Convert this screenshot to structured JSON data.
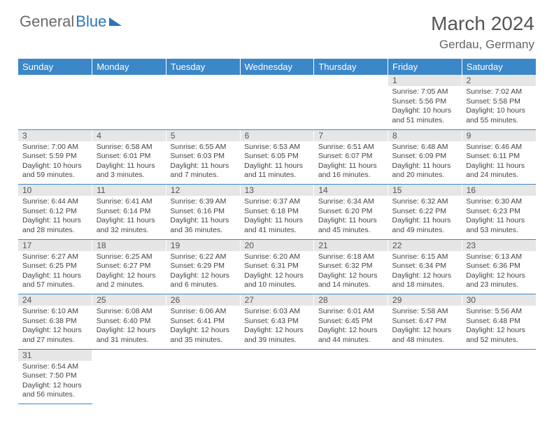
{
  "logo": {
    "part1": "General",
    "part2": "Blue"
  },
  "title": "March 2024",
  "location": "Gerdau, Germany",
  "colors": {
    "header_bg": "#3b87c8",
    "header_text": "#ffffff",
    "daynum_bg": "#e6e6e6",
    "cell_border": "#3b87c8",
    "body_text": "#444444",
    "title_text": "#555555"
  },
  "weekdays": [
    "Sunday",
    "Monday",
    "Tuesday",
    "Wednesday",
    "Thursday",
    "Friday",
    "Saturday"
  ],
  "weeks": [
    {
      "nums": [
        "",
        "",
        "",
        "",
        "",
        "1",
        "2"
      ],
      "cells": [
        null,
        null,
        null,
        null,
        null,
        {
          "sunrise": "Sunrise: 7:05 AM",
          "sunset": "Sunset: 5:56 PM",
          "day1": "Daylight: 10 hours",
          "day2": "and 51 minutes."
        },
        {
          "sunrise": "Sunrise: 7:02 AM",
          "sunset": "Sunset: 5:58 PM",
          "day1": "Daylight: 10 hours",
          "day2": "and 55 minutes."
        }
      ]
    },
    {
      "nums": [
        "3",
        "4",
        "5",
        "6",
        "7",
        "8",
        "9"
      ],
      "cells": [
        {
          "sunrise": "Sunrise: 7:00 AM",
          "sunset": "Sunset: 5:59 PM",
          "day1": "Daylight: 10 hours",
          "day2": "and 59 minutes."
        },
        {
          "sunrise": "Sunrise: 6:58 AM",
          "sunset": "Sunset: 6:01 PM",
          "day1": "Daylight: 11 hours",
          "day2": "and 3 minutes."
        },
        {
          "sunrise": "Sunrise: 6:55 AM",
          "sunset": "Sunset: 6:03 PM",
          "day1": "Daylight: 11 hours",
          "day2": "and 7 minutes."
        },
        {
          "sunrise": "Sunrise: 6:53 AM",
          "sunset": "Sunset: 6:05 PM",
          "day1": "Daylight: 11 hours",
          "day2": "and 11 minutes."
        },
        {
          "sunrise": "Sunrise: 6:51 AM",
          "sunset": "Sunset: 6:07 PM",
          "day1": "Daylight: 11 hours",
          "day2": "and 16 minutes."
        },
        {
          "sunrise": "Sunrise: 6:48 AM",
          "sunset": "Sunset: 6:09 PM",
          "day1": "Daylight: 11 hours",
          "day2": "and 20 minutes."
        },
        {
          "sunrise": "Sunrise: 6:46 AM",
          "sunset": "Sunset: 6:11 PM",
          "day1": "Daylight: 11 hours",
          "day2": "and 24 minutes."
        }
      ]
    },
    {
      "nums": [
        "10",
        "11",
        "12",
        "13",
        "14",
        "15",
        "16"
      ],
      "cells": [
        {
          "sunrise": "Sunrise: 6:44 AM",
          "sunset": "Sunset: 6:12 PM",
          "day1": "Daylight: 11 hours",
          "day2": "and 28 minutes."
        },
        {
          "sunrise": "Sunrise: 6:41 AM",
          "sunset": "Sunset: 6:14 PM",
          "day1": "Daylight: 11 hours",
          "day2": "and 32 minutes."
        },
        {
          "sunrise": "Sunrise: 6:39 AM",
          "sunset": "Sunset: 6:16 PM",
          "day1": "Daylight: 11 hours",
          "day2": "and 36 minutes."
        },
        {
          "sunrise": "Sunrise: 6:37 AM",
          "sunset": "Sunset: 6:18 PM",
          "day1": "Daylight: 11 hours",
          "day2": "and 41 minutes."
        },
        {
          "sunrise": "Sunrise: 6:34 AM",
          "sunset": "Sunset: 6:20 PM",
          "day1": "Daylight: 11 hours",
          "day2": "and 45 minutes."
        },
        {
          "sunrise": "Sunrise: 6:32 AM",
          "sunset": "Sunset: 6:22 PM",
          "day1": "Daylight: 11 hours",
          "day2": "and 49 minutes."
        },
        {
          "sunrise": "Sunrise: 6:30 AM",
          "sunset": "Sunset: 6:23 PM",
          "day1": "Daylight: 11 hours",
          "day2": "and 53 minutes."
        }
      ]
    },
    {
      "nums": [
        "17",
        "18",
        "19",
        "20",
        "21",
        "22",
        "23"
      ],
      "cells": [
        {
          "sunrise": "Sunrise: 6:27 AM",
          "sunset": "Sunset: 6:25 PM",
          "day1": "Daylight: 11 hours",
          "day2": "and 57 minutes."
        },
        {
          "sunrise": "Sunrise: 6:25 AM",
          "sunset": "Sunset: 6:27 PM",
          "day1": "Daylight: 12 hours",
          "day2": "and 2 minutes."
        },
        {
          "sunrise": "Sunrise: 6:22 AM",
          "sunset": "Sunset: 6:29 PM",
          "day1": "Daylight: 12 hours",
          "day2": "and 6 minutes."
        },
        {
          "sunrise": "Sunrise: 6:20 AM",
          "sunset": "Sunset: 6:31 PM",
          "day1": "Daylight: 12 hours",
          "day2": "and 10 minutes."
        },
        {
          "sunrise": "Sunrise: 6:18 AM",
          "sunset": "Sunset: 6:32 PM",
          "day1": "Daylight: 12 hours",
          "day2": "and 14 minutes."
        },
        {
          "sunrise": "Sunrise: 6:15 AM",
          "sunset": "Sunset: 6:34 PM",
          "day1": "Daylight: 12 hours",
          "day2": "and 18 minutes."
        },
        {
          "sunrise": "Sunrise: 6:13 AM",
          "sunset": "Sunset: 6:36 PM",
          "day1": "Daylight: 12 hours",
          "day2": "and 23 minutes."
        }
      ]
    },
    {
      "nums": [
        "24",
        "25",
        "26",
        "27",
        "28",
        "29",
        "30"
      ],
      "cells": [
        {
          "sunrise": "Sunrise: 6:10 AM",
          "sunset": "Sunset: 6:38 PM",
          "day1": "Daylight: 12 hours",
          "day2": "and 27 minutes."
        },
        {
          "sunrise": "Sunrise: 6:08 AM",
          "sunset": "Sunset: 6:40 PM",
          "day1": "Daylight: 12 hours",
          "day2": "and 31 minutes."
        },
        {
          "sunrise": "Sunrise: 6:06 AM",
          "sunset": "Sunset: 6:41 PM",
          "day1": "Daylight: 12 hours",
          "day2": "and 35 minutes."
        },
        {
          "sunrise": "Sunrise: 6:03 AM",
          "sunset": "Sunset: 6:43 PM",
          "day1": "Daylight: 12 hours",
          "day2": "and 39 minutes."
        },
        {
          "sunrise": "Sunrise: 6:01 AM",
          "sunset": "Sunset: 6:45 PM",
          "day1": "Daylight: 12 hours",
          "day2": "and 44 minutes."
        },
        {
          "sunrise": "Sunrise: 5:58 AM",
          "sunset": "Sunset: 6:47 PM",
          "day1": "Daylight: 12 hours",
          "day2": "and 48 minutes."
        },
        {
          "sunrise": "Sunrise: 5:56 AM",
          "sunset": "Sunset: 6:48 PM",
          "day1": "Daylight: 12 hours",
          "day2": "and 52 minutes."
        }
      ]
    },
    {
      "nums": [
        "31",
        "",
        "",
        "",
        "",
        "",
        ""
      ],
      "cells": [
        {
          "sunrise": "Sunrise: 6:54 AM",
          "sunset": "Sunset: 7:50 PM",
          "day1": "Daylight: 12 hours",
          "day2": "and 56 minutes."
        },
        null,
        null,
        null,
        null,
        null,
        null
      ]
    }
  ]
}
